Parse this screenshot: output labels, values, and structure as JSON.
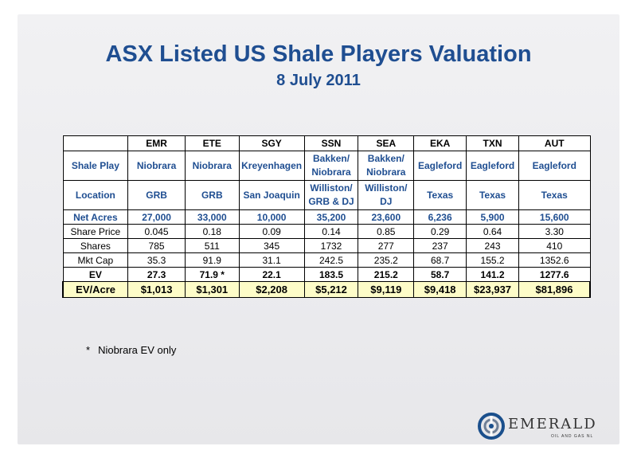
{
  "title": "ASX Listed US Shale Players Valuation",
  "subtitle": "8 July 2011",
  "table": {
    "headers": [
      "",
      "EMR",
      "ETE",
      "SGY",
      "SSN",
      "SEA",
      "EKA",
      "TXN",
      "AUT"
    ],
    "shale_play": {
      "label": "Shale Play",
      "values": [
        "Niobrara",
        "Niobrara",
        "Kreyenhagen",
        "Bakken/ Niobrara",
        "Bakken/ Niobrara",
        "Eagleford",
        "Eagleford",
        "Eagleford"
      ]
    },
    "location": {
      "label": "Location",
      "values": [
        "GRB",
        "GRB",
        "San Joaquin",
        "Williston/ GRB & DJ",
        "Williston/ DJ",
        "Texas",
        "Texas",
        "Texas"
      ]
    },
    "net_acres": {
      "label": "Net Acres",
      "values": [
        "27,000",
        "33,000",
        "10,000",
        "35,200",
        "23,600",
        "6,236",
        "5,900",
        "15,600"
      ]
    },
    "share_price": {
      "label": "Share Price",
      "values": [
        "0.045",
        "0.18",
        "0.09",
        "0.14",
        "0.85",
        "0.29",
        "0.64",
        "3.30"
      ]
    },
    "shares": {
      "label": "Shares",
      "values": [
        "785",
        "511",
        "345",
        "1732",
        "277",
        "237",
        "243",
        "410"
      ]
    },
    "mkt_cap": {
      "label": "Mkt Cap",
      "values": [
        "35.3",
        "91.9",
        "31.1",
        "242.5",
        "235.2",
        "68.7",
        "155.2",
        "1352.6"
      ]
    },
    "ev": {
      "label": "EV",
      "values": [
        "27.3",
        "71.9 *",
        "22.1",
        "183.5",
        "215.2",
        "58.7",
        "141.2",
        "1277.6"
      ]
    },
    "ev_acre": {
      "label": "EV/Acre",
      "values": [
        "$1,013",
        "$1,301",
        "$2,208",
        "$5,212",
        "$9,119",
        "$9,418",
        "$23,937",
        "$81,896"
      ]
    }
  },
  "footnote": {
    "star": "*",
    "text": "Niobrara  EV only"
  },
  "logo": {
    "word": "EMERALD",
    "sub": "OIL AND GAS NL"
  },
  "colors": {
    "title": "#1f4e91",
    "highlight_row": "#fdfcc8",
    "logo_blue": "#1a4f8c"
  }
}
